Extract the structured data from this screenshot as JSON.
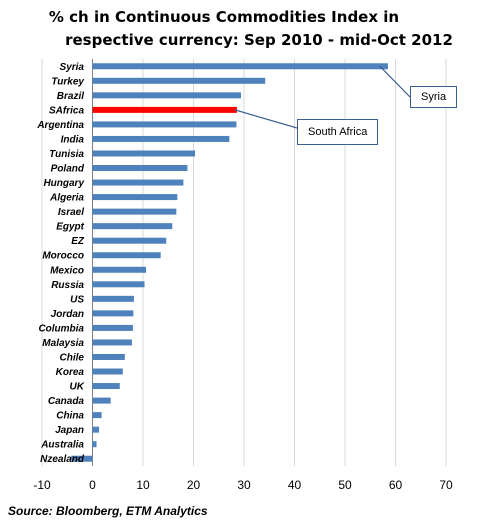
{
  "chart_data": {
    "type": "bar",
    "orientation": "horizontal",
    "title_line1": "% ch in Continuous Commodities Index in",
    "title_line2": "respective currency: Sep 2010 -  mid-Oct 2012",
    "source": "Source: Bloomberg, ETM Analytics",
    "categories": [
      "Syria",
      "Turkey",
      "Brazil",
      "SAfrica",
      "Argentina",
      "India",
      "Tunisia",
      "Poland",
      "Hungary",
      "Algeria",
      "Israel",
      "Egypt",
      "EZ",
      "Morocco",
      "Mexico",
      "Russia",
      "US",
      "Jordan",
      "Columbia",
      "Malaysia",
      "Chile",
      "Korea",
      "UK",
      "Canada",
      "China",
      "Japan",
      "Australia",
      "Nzealand"
    ],
    "values": [
      58.5,
      34.2,
      29.4,
      28.6,
      28.5,
      27.1,
      20.3,
      18.8,
      18.0,
      16.8,
      16.6,
      15.8,
      14.6,
      13.5,
      10.6,
      10.3,
      8.2,
      8.1,
      8.0,
      7.8,
      6.4,
      6.0,
      5.4,
      3.6,
      1.8,
      1.3,
      0.8,
      -4.2
    ],
    "highlight": {
      "category": "SAfrica",
      "color": "#ff0000"
    },
    "bar_color": "#4f81bd",
    "xlim": [
      -10,
      70
    ],
    "xticks": [
      -10,
      0,
      10,
      20,
      30,
      40,
      50,
      60,
      70
    ],
    "grid": "vertical",
    "annotations": [
      {
        "label": "Syria",
        "target": "Syria"
      },
      {
        "label": "South Africa",
        "target": "SAfrica"
      }
    ]
  }
}
